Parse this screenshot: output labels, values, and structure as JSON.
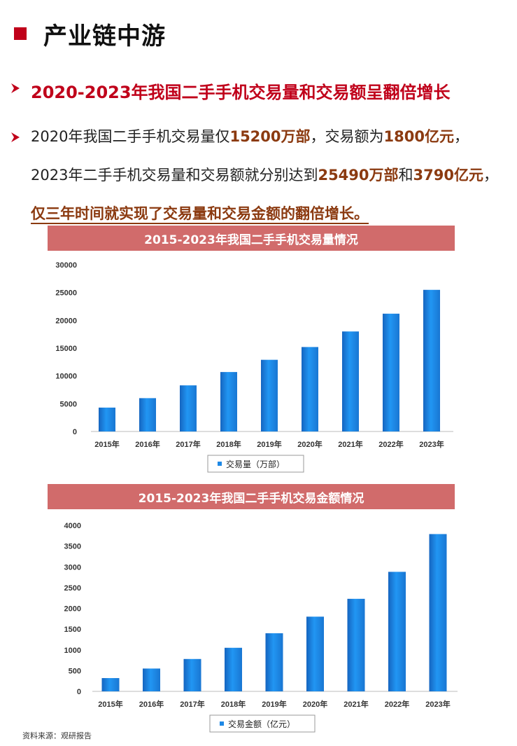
{
  "section_title": "产业链中游",
  "headline": "2020-2023年我国二手手机交易量和交易额呈翻倍增长",
  "body": {
    "line1": [
      {
        "t": "2020年我国二手手机交易量仅",
        "hl": false
      },
      {
        "t": "15200万部",
        "hl": true
      },
      {
        "t": "，交易额为",
        "hl": false
      },
      {
        "t": "1800亿元",
        "hl": true
      },
      {
        "t": "，",
        "hl": false
      }
    ],
    "line2": [
      {
        "t": "2023年二手手机交易量和交易额就分别达到",
        "hl": false
      },
      {
        "t": "25490万部",
        "hl": true
      },
      {
        "t": "和",
        "hl": false
      },
      {
        "t": "3790亿元",
        "hl": true
      },
      {
        "t": "，",
        "hl": false
      }
    ],
    "line3": "仅三年时间就实现了交易量和交易金额的翻倍增长。"
  },
  "colors": {
    "accent_red": "#c0001a",
    "highlight_brown": "#8b3a10",
    "header_band": "#d16b6b",
    "bar_blue": "#1e88e5"
  },
  "source": "资料来源：观研报告",
  "chart_data": [
    {
      "type": "bar",
      "title": "2015-2023年我国二手手机交易量情况",
      "categories": [
        "2015年",
        "2016年",
        "2017年",
        "2018年",
        "2019年",
        "2020年",
        "2021年",
        "2022年",
        "2023年"
      ],
      "series": [
        {
          "name": "交易量（万部）",
          "values": [
            4300,
            6000,
            8300,
            10700,
            12900,
            15200,
            18000,
            21200,
            25490
          ]
        }
      ],
      "ylim": [
        0,
        30000
      ],
      "yticks": [
        "0",
        "5000",
        "10000",
        "15000",
        "20000",
        "25000",
        "30000"
      ],
      "grid": false,
      "legend": "bottom-center"
    },
    {
      "type": "bar",
      "title": "2015-2023年我国二手手机交易金额情况",
      "categories": [
        "2015年",
        "2016年",
        "2017年",
        "2018年",
        "2019年",
        "2020年",
        "2021年",
        "2022年",
        "2023年"
      ],
      "series": [
        {
          "name": "交易金额（亿元）",
          "values": [
            320,
            550,
            780,
            1050,
            1400,
            1800,
            2230,
            2880,
            3790
          ]
        }
      ],
      "ylim": [
        0,
        4000
      ],
      "yticks": [
        "0",
        "500",
        "1000",
        "1500",
        "2000",
        "2500",
        "3000",
        "3500",
        "4000"
      ],
      "grid": false,
      "legend": "bottom-center"
    }
  ]
}
